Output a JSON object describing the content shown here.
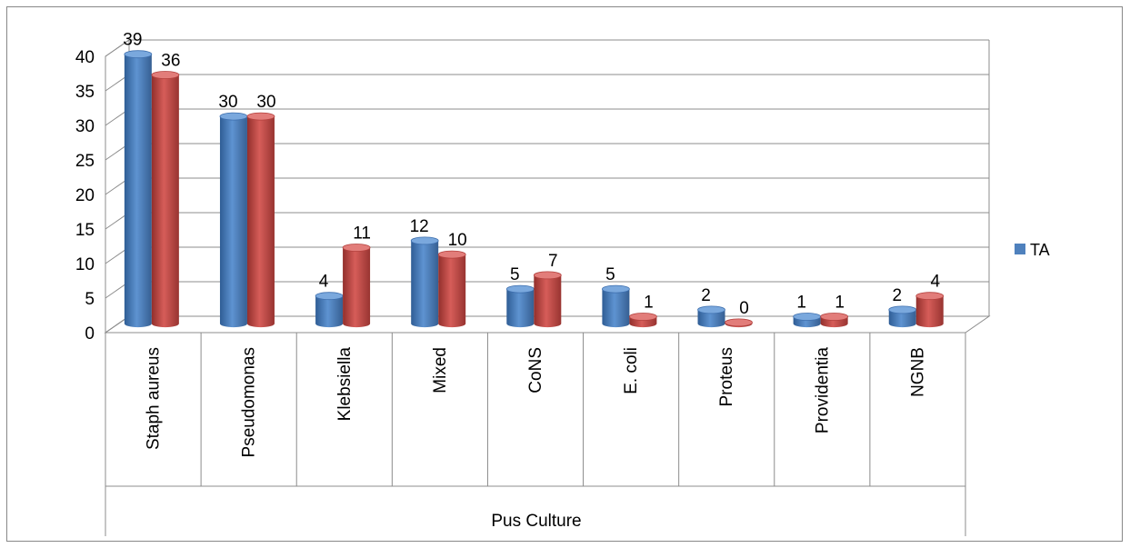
{
  "chart_data": {
    "type": "bar",
    "title": "",
    "xlabel": "Pus Culture",
    "ylabel": "",
    "ylim": [
      0,
      40
    ],
    "yticks": [
      0,
      5,
      10,
      15,
      20,
      25,
      30,
      35,
      40
    ],
    "categories": [
      "Staph aureus",
      "Pseudomonas",
      "Klebsiella",
      "Mixed",
      "CoNS",
      "E. coli",
      "Proteus",
      "Providentia",
      "NGNB"
    ],
    "series": [
      {
        "name": "TA",
        "color": "#4F81BD",
        "values": [
          39,
          30,
          4,
          12,
          5,
          5,
          2,
          1,
          2
        ]
      },
      {
        "color": "#C0504D",
        "values": [
          36,
          30,
          11,
          10,
          7,
          1,
          0,
          1,
          4
        ]
      }
    ],
    "legend": {
      "placement": "right",
      "entries": [
        "TA"
      ]
    },
    "grid": true,
    "style": "3d-cylinder"
  }
}
